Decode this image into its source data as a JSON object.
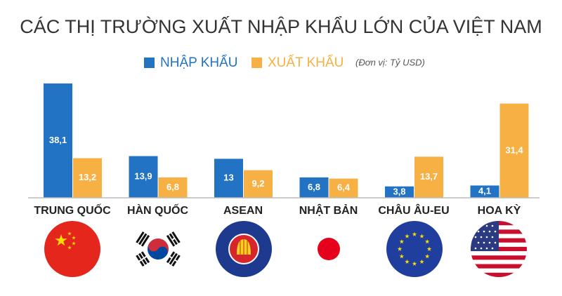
{
  "chart_data": {
    "type": "bar",
    "title": "CÁC THỊ TRƯỜNG XUẤT NHẬP KHẨU LỚN CỦA VIỆT NAM",
    "subtitle": "(Đơn vị: Tỷ USD)",
    "categories": [
      "TRUNG QUỐC",
      "HÀN QUỐC",
      "ASEAN",
      "NHẬT BẢN",
      "CHÂU ÂU-EU",
      "HOA KỲ"
    ],
    "series": [
      {
        "name": "NHẬP KHẨU",
        "color": "#2273c3",
        "values": [
          38.1,
          13.9,
          13,
          6.8,
          3.8,
          4.1
        ],
        "value_labels": [
          "38,1",
          "13,9",
          "13",
          "6,8",
          "3,8",
          "4,1"
        ]
      },
      {
        "name": "XUẤT KHẨU",
        "color": "#f6b043",
        "values": [
          13.2,
          6.8,
          9.2,
          6.4,
          13.7,
          31.4
        ],
        "value_labels": [
          "13,2",
          "6,8",
          "9,2",
          "6,4",
          "13,7",
          "31,4"
        ]
      }
    ]
  }
}
